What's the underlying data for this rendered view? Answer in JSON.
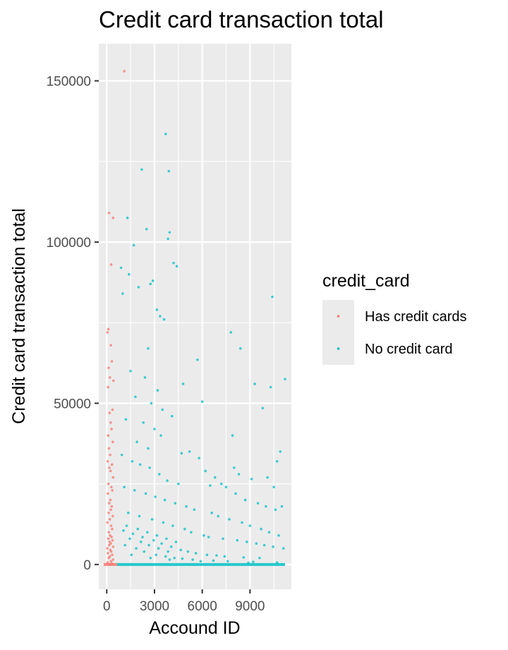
{
  "chart_data": {
    "type": "scatter",
    "title": "Credit card transaction total",
    "xlabel": "Accound ID",
    "ylabel": "Credit card transaction total",
    "xlim": [
      -500,
      11600
    ],
    "ylim": [
      -7700,
      161500
    ],
    "x_ticks": [
      0,
      3000,
      6000,
      9000
    ],
    "y_ticks": [
      0,
      50000,
      100000,
      150000
    ],
    "x_tick_labels": [
      "0",
      "3000",
      "6000",
      "9000"
    ],
    "y_tick_labels": [
      "0",
      "50000",
      "100000",
      "150000"
    ],
    "grid": true,
    "legend": {
      "title": "credit_card",
      "position": "right",
      "entries": [
        "Has credit cards",
        "No credit card"
      ]
    },
    "colors": {
      "Has credit cards": "#F8766D",
      "No credit card": "#00BFC4",
      "panel_background": "#EBEBEB",
      "grid": "#FFFFFF"
    },
    "series": [
      {
        "name": "Has credit cards",
        "x": [
          1100,
          150,
          400,
          280,
          100,
          50,
          260,
          320,
          120,
          200,
          420,
          80,
          360,
          180,
          250,
          300,
          90,
          380,
          140,
          210,
          60,
          330,
          170,
          240,
          400,
          110,
          290,
          350,
          70,
          230,
          160,
          310,
          260,
          120,
          380,
          190,
          45,
          275,
          340,
          135,
          215,
          305,
          95,
          365,
          185,
          255,
          155,
          405,
          30,
          225,
          285,
          75,
          345,
          195,
          125,
          395,
          265,
          55,
          325,
          175
        ],
        "y": [
          153000,
          109000,
          107500,
          93000,
          73000,
          72000,
          68000,
          63000,
          61000,
          58000,
          57000,
          55000,
          48000,
          47000,
          44000,
          42000,
          40000,
          38000,
          36000,
          34000,
          32000,
          31000,
          30000,
          29000,
          27000,
          25000,
          24000,
          23000,
          22000,
          20000,
          19000,
          18000,
          17000,
          16000,
          15000,
          14000,
          13000,
          12000,
          11000,
          10000,
          9000,
          8500,
          8000,
          7500,
          7000,
          6500,
          6000,
          5500,
          5000,
          4500,
          4000,
          3500,
          3000,
          2500,
          2000,
          1500,
          1000,
          600,
          300,
          0
        ]
      },
      {
        "name": "No credit card",
        "x": [
          3700,
          2200,
          3900,
          1300,
          2500,
          3950,
          3850,
          1700,
          4200,
          4400,
          900,
          1400,
          2900,
          2750,
          2000,
          3150,
          10400,
          1000,
          3350,
          3600,
          7800,
          8400,
          2600,
          5700,
          4800,
          9300,
          10300,
          11200,
          9800,
          6000,
          7900,
          10900,
          10700,
          4700,
          8000,
          10100,
          8300,
          9100,
          7200,
          6500,
          10500,
          1500,
          2400,
          3200,
          1800,
          2800,
          3500,
          4100,
          1200,
          2300,
          3000,
          3400,
          1900,
          2600,
          5200,
          5800,
          6200,
          6800,
          7500,
          8100,
          8700,
          9500,
          10000,
          10600,
          11000,
          950,
          1600,
          2100,
          2700,
          3300,
          3800,
          4500,
          1100,
          1750,
          2450,
          3050,
          3650,
          4300,
          5000,
          5500,
          6600,
          7000,
          7700,
          8500,
          9000,
          9700,
          10200,
          10800,
          1350,
          2050,
          2850,
          3550,
          4150,
          4900,
          5300,
          6100,
          6400,
          7300,
          8200,
          8800,
          9400,
          9900,
          10450,
          11100,
          1250,
          1950,
          2550,
          3150,
          3750,
          4350,
          1050,
          1650,
          2250,
          2950,
          3450,
          4050,
          4650,
          5100,
          5600,
          6300,
          6900,
          7400,
          8600,
          9600,
          1450,
          2150,
          2650,
          3250,
          3850,
          1150,
          1850,
          2350,
          3100,
          3700,
          4250,
          4750,
          5400,
          6700,
          7600,
          9200,
          10700,
          1550,
          2750,
          3950,
          5900,
          8900
        ],
        "y": [
          133500,
          122500,
          122000,
          107500,
          104000,
          103000,
          101000,
          99000,
          93500,
          92500,
          92000,
          90000,
          88000,
          87000,
          86000,
          79000,
          83000,
          84000,
          77000,
          76000,
          72000,
          67000,
          67000,
          63500,
          56000,
          56000,
          55000,
          57500,
          48500,
          50500,
          40000,
          35000,
          32000,
          34500,
          30000,
          27000,
          28000,
          26500,
          25000,
          24500,
          24000,
          60000,
          58000,
          54000,
          52000,
          50000,
          48000,
          46000,
          45000,
          44000,
          42000,
          40000,
          38000,
          36000,
          35000,
          33000,
          29000,
          27000,
          24000,
          22000,
          20000,
          19000,
          18000,
          17000,
          18000,
          34000,
          32000,
          31000,
          30000,
          28000,
          26000,
          25000,
          24000,
          23000,
          22000,
          21000,
          20000,
          19000,
          18000,
          17000,
          16000,
          15000,
          14000,
          13000,
          12000,
          11000,
          10000,
          9000,
          16000,
          15000,
          14000,
          13000,
          12000,
          11000,
          10000,
          9000,
          8500,
          8000,
          7500,
          7000,
          6500,
          6000,
          5500,
          5000,
          12000,
          11000,
          10000,
          9000,
          8000,
          7000,
          10500,
          9500,
          8500,
          7500,
          6500,
          5500,
          4500,
          4000,
          3500,
          3000,
          2800,
          2500,
          2200,
          2000,
          8000,
          7000,
          6000,
          5000,
          4000,
          6000,
          5000,
          4000,
          3000,
          2500,
          2000,
          1800,
          1500,
          1200,
          1000,
          800,
          600,
          3000,
          2000,
          1500,
          1000,
          500
        ]
      }
    ]
  }
}
